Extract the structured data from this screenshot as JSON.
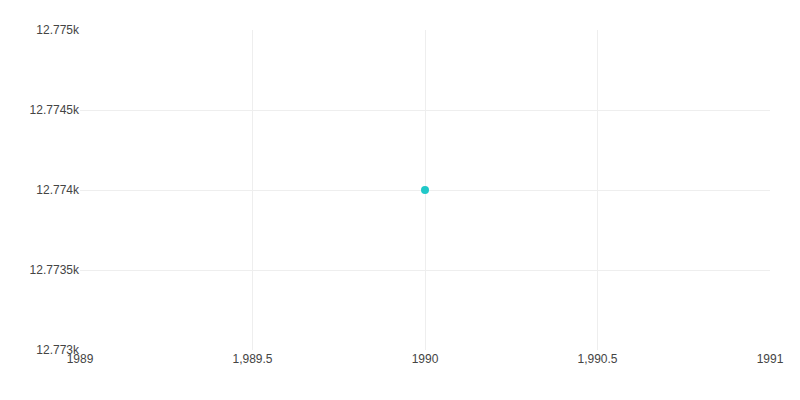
{
  "chart_data": {
    "type": "scatter",
    "x": [
      1990
    ],
    "values": [
      12774
    ],
    "color": "#20c8c8",
    "marker": "circle",
    "xlim": [
      1989,
      1991
    ],
    "xticks": [
      1989,
      {
        "value": 1989.5,
        "label": "1,989.5"
      },
      1990,
      {
        "value": 1990.5,
        "label": "1,990.5"
      },
      1991
    ],
    "ylim": [
      12773,
      12775
    ],
    "yticks": [
      {
        "value": 12773,
        "label": "12.773k"
      },
      {
        "value": 12773.5,
        "label": "12.7735k"
      },
      {
        "value": 12774,
        "label": "12.774k"
      },
      {
        "value": 12774.5,
        "label": "12.7745k"
      },
      {
        "value": 12775,
        "label": "12.775k"
      }
    ],
    "grid": true
  }
}
